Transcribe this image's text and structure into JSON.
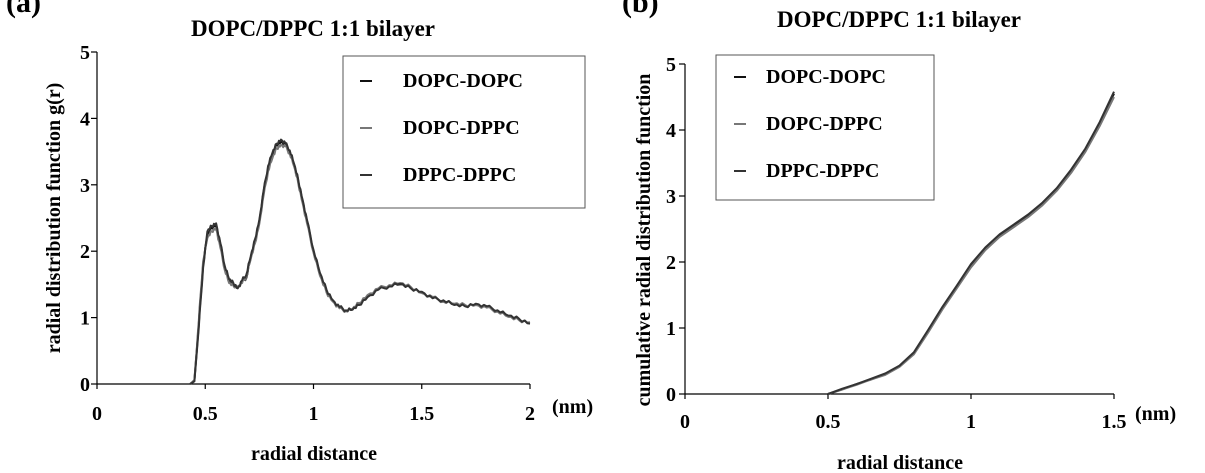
{
  "chart_data": [
    {
      "type": "line",
      "panel_label": "(a)",
      "title": "DOPC/DPPC 1:1 bilayer",
      "xlabel": "radial distance",
      "ylabel": "radial distribution function g(r)",
      "x_unit": "(nm)",
      "xlim": [
        0,
        2
      ],
      "ylim": [
        0,
        5
      ],
      "xticks": [
        "0",
        "0.5",
        "1",
        "1.5",
        "2"
      ],
      "yticks": [
        "0",
        "1",
        "2",
        "3",
        "4",
        "5"
      ],
      "legend_position": "top-right",
      "grid": false,
      "series": [
        {
          "name": "DOPC-DOPC",
          "color": "#111111",
          "x": [
            0.43,
            0.45,
            0.47,
            0.49,
            0.51,
            0.53,
            0.55,
            0.57,
            0.59,
            0.61,
            0.63,
            0.65,
            0.67,
            0.69,
            0.71,
            0.73,
            0.75,
            0.77,
            0.79,
            0.81,
            0.83,
            0.85,
            0.87,
            0.89,
            0.91,
            0.93,
            0.95,
            0.97,
            1.0,
            1.03,
            1.06,
            1.09,
            1.12,
            1.15,
            1.18,
            1.21,
            1.25,
            1.3,
            1.35,
            1.4,
            1.45,
            1.5,
            1.55,
            1.6,
            1.65,
            1.7,
            1.75,
            1.8,
            1.85,
            1.9,
            1.95,
            2.0
          ],
          "y": [
            0,
            0.05,
            0.9,
            1.8,
            2.25,
            2.35,
            2.4,
            2.1,
            1.75,
            1.55,
            1.5,
            1.45,
            1.55,
            1.6,
            1.9,
            2.15,
            2.45,
            2.9,
            3.25,
            3.45,
            3.6,
            3.65,
            3.62,
            3.5,
            3.3,
            3.05,
            2.75,
            2.45,
            2.0,
            1.65,
            1.4,
            1.25,
            1.15,
            1.1,
            1.12,
            1.2,
            1.32,
            1.43,
            1.48,
            1.5,
            1.45,
            1.38,
            1.3,
            1.25,
            1.2,
            1.18,
            1.2,
            1.16,
            1.1,
            1.02,
            0.97,
            0.92
          ]
        },
        {
          "name": "DOPC-DPPC",
          "color": "#777777",
          "x": [
            0.43,
            0.45,
            0.47,
            0.49,
            0.51,
            0.53,
            0.55,
            0.57,
            0.59,
            0.61,
            0.63,
            0.65,
            0.67,
            0.69,
            0.71,
            0.73,
            0.75,
            0.77,
            0.79,
            0.81,
            0.83,
            0.85,
            0.87,
            0.89,
            0.91,
            0.93,
            0.95,
            0.97,
            1.0,
            1.03,
            1.06,
            1.09,
            1.12,
            1.15,
            1.18,
            1.21,
            1.25,
            1.3,
            1.35,
            1.4,
            1.45,
            1.5,
            1.55,
            1.6,
            1.65,
            1.7,
            1.75,
            1.8,
            1.85,
            1.9,
            1.95,
            2.0
          ],
          "y": [
            0,
            0.06,
            0.95,
            1.85,
            2.2,
            2.3,
            2.35,
            2.05,
            1.72,
            1.52,
            1.48,
            1.47,
            1.52,
            1.62,
            1.88,
            2.12,
            2.42,
            2.85,
            3.2,
            3.4,
            3.55,
            3.6,
            3.58,
            3.47,
            3.28,
            3.02,
            2.72,
            2.42,
            1.98,
            1.63,
            1.38,
            1.24,
            1.14,
            1.1,
            1.13,
            1.22,
            1.34,
            1.44,
            1.49,
            1.52,
            1.46,
            1.37,
            1.31,
            1.24,
            1.21,
            1.19,
            1.19,
            1.15,
            1.09,
            1.01,
            0.96,
            0.93
          ]
        },
        {
          "name": "DPPC-DPPC",
          "color": "#333333",
          "x": [
            0.43,
            0.45,
            0.47,
            0.49,
            0.51,
            0.53,
            0.55,
            0.57,
            0.59,
            0.61,
            0.63,
            0.65,
            0.67,
            0.69,
            0.71,
            0.73,
            0.75,
            0.77,
            0.79,
            0.81,
            0.83,
            0.85,
            0.87,
            0.89,
            0.91,
            0.93,
            0.95,
            0.97,
            1.0,
            1.03,
            1.06,
            1.09,
            1.12,
            1.15,
            1.18,
            1.21,
            1.25,
            1.3,
            1.35,
            1.4,
            1.45,
            1.5,
            1.55,
            1.6,
            1.65,
            1.7,
            1.75,
            1.8,
            1.85,
            1.9,
            1.95,
            2.0
          ],
          "y": [
            0,
            0.04,
            0.85,
            1.75,
            2.3,
            2.38,
            2.42,
            2.12,
            1.78,
            1.58,
            1.52,
            1.44,
            1.56,
            1.65,
            1.92,
            2.18,
            2.48,
            2.92,
            3.28,
            3.48,
            3.62,
            3.68,
            3.63,
            3.52,
            3.32,
            3.07,
            2.77,
            2.47,
            2.02,
            1.67,
            1.42,
            1.26,
            1.16,
            1.11,
            1.12,
            1.19,
            1.31,
            1.42,
            1.47,
            1.51,
            1.44,
            1.39,
            1.29,
            1.26,
            1.19,
            1.17,
            1.21,
            1.17,
            1.11,
            1.03,
            0.98,
            0.91
          ]
        }
      ]
    },
    {
      "type": "line",
      "panel_label": "(b)",
      "title": "DOPC/DPPC 1:1 bilayer",
      "xlabel": "radial distance",
      "ylabel": "cumulative radial distribution function",
      "x_unit": "(nm)",
      "xlim": [
        0,
        1.5
      ],
      "ylim": [
        0,
        5
      ],
      "xticks": [
        "0",
        "0.5",
        "1",
        "1.5"
      ],
      "yticks": [
        "0",
        "1",
        "2",
        "3",
        "4",
        "5"
      ],
      "legend_position": "top-left",
      "grid": false,
      "series": [
        {
          "name": "DOPC-DOPC",
          "color": "#111111",
          "x": [
            0.5,
            0.55,
            0.6,
            0.65,
            0.7,
            0.75,
            0.8,
            0.85,
            0.9,
            0.95,
            1.0,
            1.05,
            1.1,
            1.15,
            1.2,
            1.25,
            1.3,
            1.35,
            1.4,
            1.45,
            1.5
          ],
          "y": [
            0.0,
            0.07,
            0.15,
            0.22,
            0.3,
            0.42,
            0.62,
            0.95,
            1.3,
            1.62,
            1.95,
            2.2,
            2.4,
            2.55,
            2.7,
            2.88,
            3.1,
            3.38,
            3.7,
            4.1,
            4.55
          ]
        },
        {
          "name": "DOPC-DPPC",
          "color": "#777777",
          "x": [
            0.5,
            0.55,
            0.6,
            0.65,
            0.7,
            0.75,
            0.8,
            0.85,
            0.9,
            0.95,
            1.0,
            1.05,
            1.1,
            1.15,
            1.2,
            1.25,
            1.3,
            1.35,
            1.4,
            1.45,
            1.5
          ],
          "y": [
            0.0,
            0.07,
            0.14,
            0.22,
            0.29,
            0.41,
            0.6,
            0.93,
            1.28,
            1.6,
            1.92,
            2.18,
            2.38,
            2.53,
            2.68,
            2.86,
            3.08,
            3.35,
            3.67,
            4.06,
            4.5
          ]
        },
        {
          "name": "DPPC-DPPC",
          "color": "#333333",
          "x": [
            0.5,
            0.55,
            0.6,
            0.65,
            0.7,
            0.75,
            0.8,
            0.85,
            0.9,
            0.95,
            1.0,
            1.05,
            1.1,
            1.15,
            1.2,
            1.25,
            1.3,
            1.35,
            1.4,
            1.45,
            1.5
          ],
          "y": [
            0.0,
            0.08,
            0.15,
            0.23,
            0.31,
            0.43,
            0.63,
            0.97,
            1.32,
            1.64,
            1.97,
            2.22,
            2.42,
            2.57,
            2.72,
            2.9,
            3.12,
            3.4,
            3.72,
            4.12,
            4.58
          ]
        }
      ]
    }
  ]
}
